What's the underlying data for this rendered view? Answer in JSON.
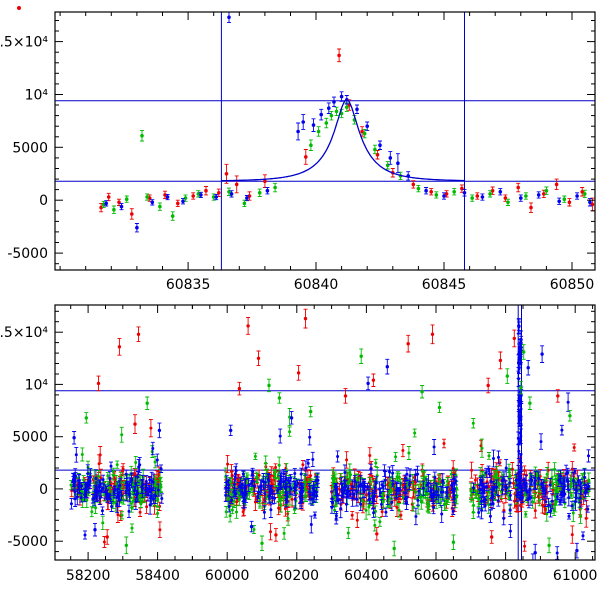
{
  "figure": {
    "description_visible_text_only": true
  },
  "style": {
    "background": "#ffffff",
    "frame_color": "#000000",
    "accent_line_color": "#0000cc",
    "series_colors": {
      "red": "#ee0000",
      "green": "#00bb00",
      "blue": "#0000f0"
    },
    "tick_font_size": "14"
  },
  "chart_data": [
    {
      "type": "scatter",
      "id": "top",
      "title": "",
      "x_range": [
        60829.8,
        60850.9
      ],
      "y_range": [
        -6600,
        17800
      ],
      "x_break": null,
      "x_minor_step": 1,
      "x_major_ticks": [
        {
          "v": 60835,
          "label": "60835"
        },
        {
          "v": 60840,
          "label": "60840"
        },
        {
          "v": 60845,
          "label": "60845"
        },
        {
          "v": 60850,
          "label": "60850"
        }
      ],
      "y_minor_step": 1000,
      "y_ticks": [
        {
          "v": -5000,
          "label": "-5000"
        },
        {
          "v": 0,
          "label": "0"
        },
        {
          "v": 5000,
          "label": "5000"
        },
        {
          "v": 10000,
          "label": "10⁴"
        },
        {
          "v": 15000,
          "label": "1.5×10⁴"
        }
      ],
      "h_lines": [
        9400,
        1800
      ],
      "v_lines": [
        60836.3,
        60845.8
      ],
      "fit_curve": {
        "model": "paczynski",
        "t0": 60841.2,
        "tE": 1.6,
        "u0": 0.3,
        "baseline": 1800,
        "amplitude": 7700,
        "t_start": 60836.3,
        "t_end": 60845.8
      },
      "series": [
        {
          "name": "red",
          "points": [
            [
              60831.6,
              -700,
              400
            ],
            [
              60831.9,
              300,
              350
            ],
            [
              60832.3,
              -200,
              300
            ],
            [
              60832.8,
              -1300,
              500
            ],
            [
              60833.5,
              200,
              300
            ],
            [
              60834.1,
              500,
              350
            ],
            [
              60834.6,
              -300,
              300
            ],
            [
              60835.2,
              400,
              300
            ],
            [
              60835.7,
              900,
              400
            ],
            [
              60836.2,
              700,
              350
            ],
            [
              60836.5,
              2500,
              900
            ],
            [
              60836.9,
              1500,
              800
            ],
            [
              60837.4,
              400,
              400
            ],
            [
              60838.0,
              1800,
              600
            ],
            [
              60839.6,
              4100,
              700
            ],
            [
              60840.9,
              13700,
              600
            ],
            [
              60841.3,
              9000,
              500
            ],
            [
              60841.8,
              6500,
              450
            ],
            [
              60842.4,
              4300,
              400
            ],
            [
              60843.0,
              2600,
              400
            ],
            [
              60843.8,
              1500,
              350
            ],
            [
              60844.5,
              800,
              300
            ],
            [
              60845.1,
              600,
              300
            ],
            [
              60845.7,
              1100,
              350
            ],
            [
              60846.3,
              400,
              300
            ],
            [
              60846.9,
              900,
              350
            ],
            [
              60847.4,
              200,
              300
            ],
            [
              60847.9,
              1200,
              400
            ],
            [
              60848.4,
              -700,
              450
            ],
            [
              60848.9,
              600,
              350
            ],
            [
              60849.4,
              1500,
              500
            ],
            [
              60849.9,
              -200,
              350
            ],
            [
              60850.4,
              800,
              400
            ],
            [
              60850.8,
              -400,
              600
            ]
          ]
        },
        {
          "name": "green",
          "points": [
            [
              60831.7,
              -400,
              300
            ],
            [
              60832.1,
              -900,
              350
            ],
            [
              60832.6,
              100,
              300
            ],
            [
              60833.2,
              6100,
              500
            ],
            [
              60833.4,
              300,
              300
            ],
            [
              60833.9,
              -600,
              350
            ],
            [
              60834.4,
              -1500,
              400
            ],
            [
              60834.9,
              200,
              300
            ],
            [
              60835.4,
              600,
              300
            ],
            [
              60836.0,
              300,
              300
            ],
            [
              60836.6,
              800,
              350
            ],
            [
              60837.2,
              -300,
              300
            ],
            [
              60837.8,
              700,
              350
            ],
            [
              60838.4,
              1200,
              400
            ],
            [
              60839.8,
              5200,
              500
            ],
            [
              60840.1,
              6500,
              450
            ],
            [
              60840.4,
              7300,
              450
            ],
            [
              60840.6,
              8000,
              400
            ],
            [
              60840.8,
              8400,
              400
            ],
            [
              60841.0,
              8200,
              400
            ],
            [
              60841.2,
              8800,
              400
            ],
            [
              60841.5,
              7600,
              400
            ],
            [
              60841.9,
              6300,
              400
            ],
            [
              60842.3,
              4800,
              400
            ],
            [
              60842.8,
              3300,
              350
            ],
            [
              60843.3,
              2300,
              350
            ],
            [
              60844.0,
              1100,
              300
            ],
            [
              60844.7,
              500,
              300
            ],
            [
              60845.4,
              800,
              300
            ],
            [
              60846.1,
              200,
              300
            ],
            [
              60846.8,
              600,
              300
            ],
            [
              60847.5,
              -200,
              300
            ],
            [
              60848.2,
              400,
              300
            ],
            [
              60849.0,
              900,
              350
            ],
            [
              60849.7,
              100,
              300
            ],
            [
              60850.5,
              600,
              350
            ]
          ]
        },
        {
          "name": "blue",
          "points": [
            [
              60831.8,
              -300,
              250
            ],
            [
              60832.4,
              -600,
              300
            ],
            [
              60833.0,
              -2600,
              400
            ],
            [
              60833.6,
              -200,
              250
            ],
            [
              60834.2,
              300,
              250
            ],
            [
              60834.8,
              -100,
              250
            ],
            [
              60835.5,
              500,
              250
            ],
            [
              60836.1,
              300,
              250
            ],
            [
              60836.6,
              17300,
              500
            ],
            [
              60836.7,
              600,
              300
            ],
            [
              60837.3,
              200,
              250
            ],
            [
              60838.1,
              900,
              300
            ],
            [
              60839.3,
              6500,
              800
            ],
            [
              60839.5,
              7400,
              700
            ],
            [
              60839.9,
              7100,
              600
            ],
            [
              60840.2,
              8100,
              500
            ],
            [
              60840.5,
              8700,
              500
            ],
            [
              60840.7,
              9300,
              450
            ],
            [
              60841.0,
              9800,
              450
            ],
            [
              60841.2,
              9500,
              400
            ],
            [
              60841.6,
              8600,
              400
            ],
            [
              60842.0,
              7000,
              400
            ],
            [
              60842.5,
              5200,
              400
            ],
            [
              60842.9,
              4000,
              600
            ],
            [
              60843.2,
              3500,
              900
            ],
            [
              60843.6,
              2300,
              400
            ],
            [
              60844.3,
              900,
              300
            ],
            [
              60845.0,
              400,
              300
            ],
            [
              60845.8,
              700,
              300
            ],
            [
              60846.5,
              300,
              300
            ],
            [
              60847.2,
              800,
              300
            ],
            [
              60848.0,
              200,
              300
            ],
            [
              60848.7,
              500,
              300
            ],
            [
              60849.5,
              -100,
              300
            ],
            [
              60850.2,
              400,
              300
            ],
            [
              60850.7,
              -200,
              350
            ]
          ]
        }
      ]
    },
    {
      "type": "scatter",
      "id": "bottom",
      "title": "",
      "x_range": [
        58105,
        61057
      ],
      "y_range": [
        -6800,
        17600
      ],
      "x_break": {
        "from": 58500,
        "to": 59900
      },
      "x_minor_step": 50,
      "x_major_ticks": [
        {
          "v": 58200,
          "label": "58200"
        },
        {
          "v": 58400,
          "label": "58400"
        },
        {
          "v": 60000,
          "label": "60000"
        },
        {
          "v": 60200,
          "label": "60200"
        },
        {
          "v": 60400,
          "label": "60400"
        },
        {
          "v": 60600,
          "label": "60600"
        },
        {
          "v": 60800,
          "label": "60800"
        },
        {
          "v": 61000,
          "label": "61000"
        }
      ],
      "y_minor_step": 1000,
      "y_ticks": [
        {
          "v": -5000,
          "label": "-5000"
        },
        {
          "v": 0,
          "label": "0"
        },
        {
          "v": 5000,
          "label": "5000"
        },
        {
          "v": 10000,
          "label": "10⁴"
        },
        {
          "v": 15000,
          "label": "1.5×10⁴"
        }
      ],
      "h_lines": [
        9400,
        1800
      ],
      "v_lines": [
        60836.3,
        60845.8
      ],
      "noise_seed": 7,
      "noise_clusters": [
        {
          "t_min": 58150,
          "t_max": 58412,
          "n_per_color": 105,
          "sigma": 800,
          "tail_frac": 0.13,
          "tail_sigma": 2400
        },
        {
          "t_min": 59995,
          "t_max": 60262,
          "n_per_color": 105,
          "sigma": 800,
          "tail_frac": 0.13,
          "tail_sigma": 2400
        },
        {
          "t_min": 60300,
          "t_max": 60662,
          "n_per_color": 115,
          "sigma": 820,
          "tail_frac": 0.13,
          "tail_sigma": 2400
        },
        {
          "t_min": 60700,
          "t_max": 61040,
          "n_per_color": 120,
          "sigma": 900,
          "tail_frac": 0.16,
          "tail_sigma": 2700
        }
      ],
      "event_streak": {
        "t_min": 60836.5,
        "t_max": 60845,
        "n": 48,
        "y_min": -500,
        "y_max": 15800,
        "color": "blue"
      },
      "outliers": [
        [
          58160,
          4900,
          600,
          "blue"
        ],
        [
          58195,
          6800,
          500,
          "green"
        ],
        [
          58220,
          -3900,
          600,
          "blue"
        ],
        [
          58230,
          10100,
          700,
          "red"
        ],
        [
          58255,
          -4600,
          700,
          "red"
        ],
        [
          58290,
          13600,
          800,
          "red"
        ],
        [
          58310,
          -5400,
          800,
          "green"
        ],
        [
          58335,
          6200,
          900,
          "red"
        ],
        [
          58345,
          14800,
          700,
          "red"
        ],
        [
          58370,
          8200,
          600,
          "green"
        ],
        [
          58405,
          5600,
          700,
          "blue"
        ],
        [
          60010,
          5600,
          500,
          "blue"
        ],
        [
          60035,
          9600,
          600,
          "red"
        ],
        [
          60060,
          15600,
          800,
          "red"
        ],
        [
          60070,
          -3600,
          500,
          "blue"
        ],
        [
          60090,
          12500,
          700,
          "red"
        ],
        [
          60100,
          -5200,
          700,
          "green"
        ],
        [
          60120,
          9900,
          600,
          "green"
        ],
        [
          60140,
          -4400,
          600,
          "red"
        ],
        [
          60150,
          8700,
          500,
          "green"
        ],
        [
          60185,
          6800,
          600,
          "blue"
        ],
        [
          60205,
          11100,
          700,
          "red"
        ],
        [
          60225,
          16300,
          900,
          "red"
        ],
        [
          60240,
          7400,
          500,
          "green"
        ],
        [
          60340,
          8900,
          700,
          "red"
        ],
        [
          60385,
          12700,
          700,
          "green"
        ],
        [
          60405,
          10100,
          600,
          "blue"
        ],
        [
          60420,
          10400,
          600,
          "red"
        ],
        [
          60430,
          -4300,
          600,
          "red"
        ],
        [
          60460,
          11700,
          700,
          "blue"
        ],
        [
          60480,
          -5700,
          700,
          "green"
        ],
        [
          60520,
          13900,
          800,
          "red"
        ],
        [
          60560,
          9300,
          600,
          "green"
        ],
        [
          60590,
          14800,
          900,
          "red"
        ],
        [
          60610,
          7800,
          500,
          "green"
        ],
        [
          60650,
          -5100,
          700,
          "green"
        ],
        [
          60750,
          9900,
          700,
          "red"
        ],
        [
          60760,
          -4600,
          600,
          "red"
        ],
        [
          60785,
          12300,
          800,
          "red"
        ],
        [
          60805,
          10800,
          700,
          "green"
        ],
        [
          60825,
          14400,
          800,
          "red"
        ],
        [
          60838,
          15600,
          700,
          "blue"
        ],
        [
          60842,
          13500,
          800,
          "blue"
        ],
        [
          60844,
          9700,
          600,
          "green"
        ],
        [
          60852,
          13100,
          700,
          "green"
        ],
        [
          60865,
          11600,
          700,
          "blue"
        ],
        [
          60870,
          8200,
          600,
          "green"
        ],
        [
          60885,
          -6100,
          800,
          "blue"
        ],
        [
          60905,
          12900,
          800,
          "blue"
        ],
        [
          60925,
          -5400,
          700,
          "green"
        ],
        [
          60950,
          8900,
          600,
          "red"
        ],
        [
          60985,
          7000,
          500,
          "green"
        ],
        [
          61005,
          -5900,
          700,
          "blue"
        ]
      ]
    }
  ]
}
